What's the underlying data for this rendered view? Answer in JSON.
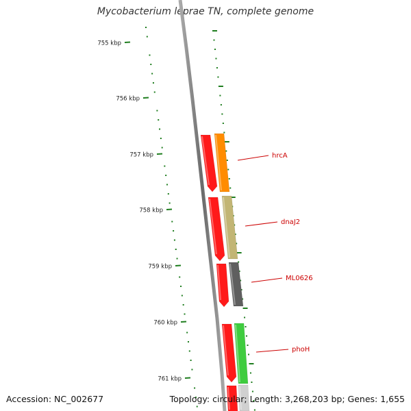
{
  "title": "Mycobacterium leprae TN, complete genome",
  "footer": {
    "accession": "Accession: NC_002677",
    "stats": "Topology: circular; Length: 3,268,203 bp; Genes: 1,655"
  },
  "ruler": {
    "unit": "kbp",
    "labels": [
      "755 kbp",
      "756 kbp",
      "757 kbp",
      "758 kbp",
      "759 kbp",
      "760 kbp",
      "761 kbp"
    ]
  },
  "genes": [
    {
      "name": "hrcA",
      "color": "#ff8c00"
    },
    {
      "name": "dnaJ2",
      "color": "#c2b574"
    },
    {
      "name": "ML0626",
      "color": "#5f5f5f"
    },
    {
      "name": "phoH",
      "color": "#3fcc3f"
    }
  ],
  "colors": {
    "backbone": "#888888",
    "tick": "#1e7d1e",
    "label_line": "#cc0000",
    "label_text": "#cc0000",
    "cds_strand": "#ff1a1a"
  }
}
